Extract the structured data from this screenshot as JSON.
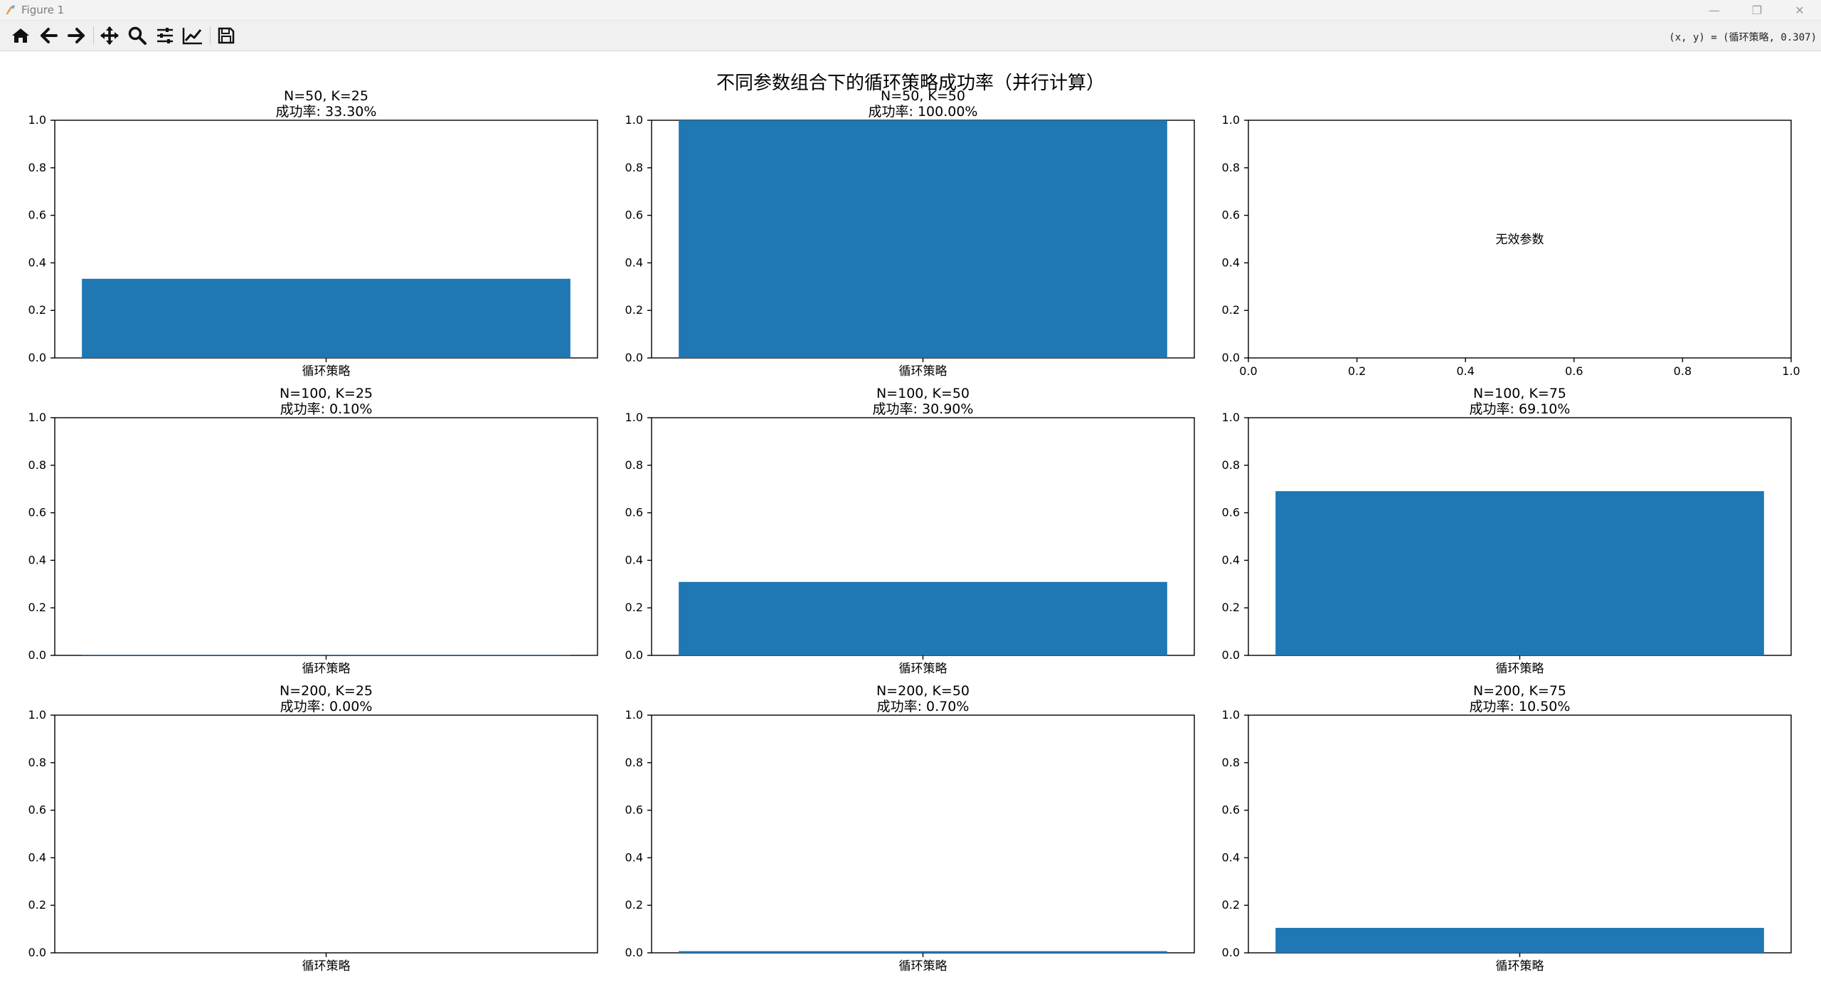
{
  "window": {
    "title": "Figure 1",
    "controls": {
      "minimize": "—",
      "restore": "❐",
      "close": "✕"
    }
  },
  "toolbar": {
    "buttons": [
      {
        "name": "home-button",
        "icon": "home-icon"
      },
      {
        "name": "back-button",
        "icon": "arrow-left-icon"
      },
      {
        "name": "forward-button",
        "icon": "arrow-right-icon"
      },
      {
        "name": "pan-button",
        "icon": "move-icon"
      },
      {
        "name": "zoom-button",
        "icon": "magnifier-icon"
      },
      {
        "name": "configure-subplots-button",
        "icon": "sliders-icon"
      },
      {
        "name": "edit-axis-button",
        "icon": "line-chart-icon"
      },
      {
        "name": "save-button",
        "icon": "floppy-disk-icon"
      }
    ],
    "coords_text": "(x, y) = (循环策略, 0.307)"
  },
  "figure": {
    "suptitle": "不同参数组合下的循环策略成功率（并行计算）",
    "bar_color": "#1f77b4"
  },
  "chart_data": [
    {
      "type": "bar",
      "title": "N=50, K=25",
      "subtitle": "成功率: 33.30%",
      "categories": [
        "循环策略"
      ],
      "values": [
        0.333
      ],
      "ylim": [
        0,
        1
      ],
      "yticks": [
        "0.0",
        "0.2",
        "0.4",
        "0.6",
        "0.8",
        "1.0"
      ]
    },
    {
      "type": "bar",
      "title": "N=50, K=50",
      "subtitle": "成功率: 100.00%",
      "categories": [
        "循环策略"
      ],
      "values": [
        1.0
      ],
      "ylim": [
        0,
        1
      ],
      "yticks": [
        "0.0",
        "0.2",
        "0.4",
        "0.6",
        "0.8",
        "1.0"
      ]
    },
    {
      "type": "bar",
      "title": "",
      "subtitle": "",
      "categories": [],
      "values": [],
      "ylim": [
        0,
        1
      ],
      "xlim": [
        0,
        1
      ],
      "yticks": [
        "0.0",
        "0.2",
        "0.4",
        "0.6",
        "0.8",
        "1.0"
      ],
      "xticks": [
        "0.0",
        "0.2",
        "0.4",
        "0.6",
        "0.8",
        "1.0"
      ],
      "annotation": "无效参数"
    },
    {
      "type": "bar",
      "title": "N=100, K=25",
      "subtitle": "成功率: 0.10%",
      "categories": [
        "循环策略"
      ],
      "values": [
        0.001
      ],
      "ylim": [
        0,
        1
      ],
      "yticks": [
        "0.0",
        "0.2",
        "0.4",
        "0.6",
        "0.8",
        "1.0"
      ]
    },
    {
      "type": "bar",
      "title": "N=100, K=50",
      "subtitle": "成功率: 30.90%",
      "categories": [
        "循环策略"
      ],
      "values": [
        0.309
      ],
      "ylim": [
        0,
        1
      ],
      "yticks": [
        "0.0",
        "0.2",
        "0.4",
        "0.6",
        "0.8",
        "1.0"
      ]
    },
    {
      "type": "bar",
      "title": "N=100, K=75",
      "subtitle": "成功率: 69.10%",
      "categories": [
        "循环策略"
      ],
      "values": [
        0.691
      ],
      "ylim": [
        0,
        1
      ],
      "yticks": [
        "0.0",
        "0.2",
        "0.4",
        "0.6",
        "0.8",
        "1.0"
      ]
    },
    {
      "type": "bar",
      "title": "N=200, K=25",
      "subtitle": "成功率: 0.00%",
      "categories": [
        "循环策略"
      ],
      "values": [
        0.0
      ],
      "ylim": [
        0,
        1
      ],
      "yticks": [
        "0.0",
        "0.2",
        "0.4",
        "0.6",
        "0.8",
        "1.0"
      ]
    },
    {
      "type": "bar",
      "title": "N=200, K=50",
      "subtitle": "成功率: 0.70%",
      "categories": [
        "循环策略"
      ],
      "values": [
        0.007
      ],
      "ylim": [
        0,
        1
      ],
      "yticks": [
        "0.0",
        "0.2",
        "0.4",
        "0.6",
        "0.8",
        "1.0"
      ]
    },
    {
      "type": "bar",
      "title": "N=200, K=75",
      "subtitle": "成功率: 10.50%",
      "categories": [
        "循环策略"
      ],
      "values": [
        0.105
      ],
      "ylim": [
        0,
        1
      ],
      "yticks": [
        "0.0",
        "0.2",
        "0.4",
        "0.6",
        "0.8",
        "1.0"
      ]
    }
  ]
}
